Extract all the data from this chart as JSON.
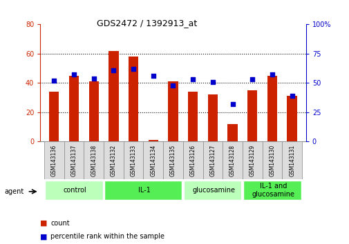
{
  "title": "GDS2472 / 1392913_at",
  "samples": [
    "GSM143136",
    "GSM143137",
    "GSM143138",
    "GSM143132",
    "GSM143133",
    "GSM143134",
    "GSM143135",
    "GSM143126",
    "GSM143127",
    "GSM143128",
    "GSM143129",
    "GSM143130",
    "GSM143131"
  ],
  "counts": [
    34,
    45,
    41,
    62,
    58,
    1,
    41,
    34,
    32,
    12,
    35,
    45,
    31
  ],
  "percentiles": [
    52,
    57,
    54,
    61,
    62,
    56,
    48,
    53,
    51,
    32,
    53,
    57,
    39
  ],
  "groups": [
    {
      "label": "control",
      "start": 0,
      "end": 3,
      "color": "#bbffbb"
    },
    {
      "label": "IL-1",
      "start": 3,
      "end": 7,
      "color": "#55ee55"
    },
    {
      "label": "glucosamine",
      "start": 7,
      "end": 10,
      "color": "#bbffbb"
    },
    {
      "label": "IL-1 and\nglucosamine",
      "start": 10,
      "end": 13,
      "color": "#55ee55"
    }
  ],
  "bar_color": "#cc2200",
  "dot_color": "#0000cc",
  "ylim_left": [
    0,
    80
  ],
  "ylim_right": [
    0,
    100
  ],
  "yticks_left": [
    0,
    20,
    40,
    60,
    80
  ],
  "yticks_right": [
    0,
    25,
    50,
    75,
    100
  ],
  "grid_dotted_at": [
    20,
    40,
    60
  ],
  "bar_width": 0.5,
  "axis_color_left": "#cc2200",
  "axis_color_right": "#0000cc",
  "bg_color": "#ffffff",
  "xticklabel_bg": "#dddddd",
  "xticklabel_border": "#888888"
}
